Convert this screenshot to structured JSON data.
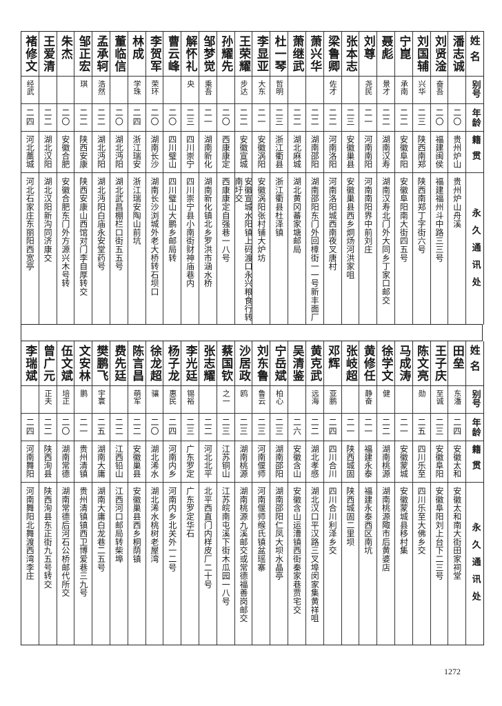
{
  "headers": {
    "name": "姓名",
    "alias": "别号",
    "age": "年龄",
    "origin": "籍贯",
    "address": "永久通讯处"
  },
  "top_rows": [
    {
      "name": "潘志诚",
      "alias": "",
      "age": "二〇",
      "origin": "贵州炉山",
      "address": "贵州炉山舟溪"
    },
    {
      "name": "刘贤淦",
      "alias": "奋吾",
      "age": "二〇",
      "origin": "福建闽侯",
      "address": "福建福州斗中路三三号"
    },
    {
      "name": "刘国辅",
      "alias": "兴华",
      "age": "二三",
      "origin": "陕西南郑",
      "address": "陕西南郑丁字街六号"
    },
    {
      "name": "宁崑",
      "alias": "承南",
      "age": "二二",
      "origin": "安徽阜阳",
      "address": "安徽阜阳南大街四五号"
    },
    {
      "name": "聂彪",
      "alias": "景才",
      "age": "二二",
      "origin": "湖南汉寿",
      "address": "湖南汉寿北门外大同乡丁家口邮交"
    },
    {
      "name": "刘尊",
      "alias": "尧民",
      "age": "二一",
      "origin": "河南南阳",
      "address": "河南南阳界中前刘庄"
    },
    {
      "name": "张本志",
      "alias": "",
      "age": "二三",
      "origin": "安徽巢县",
      "address": "安徽巢县西乡炯炀河洪家咀"
    },
    {
      "name": "梁鲁卿",
      "alias": "佐才",
      "age": "二二",
      "origin": "河南洛阳",
      "address": "河南洛阳城西南夜叉唐村"
    },
    {
      "name": "萧兴华",
      "alias": "",
      "age": "二二",
      "origin": "湖南邵阳",
      "address": "湖南邵阳东门外回樟街一一号新丰面厂"
    },
    {
      "name": "萧继武",
      "alias": "",
      "age": "二二",
      "origin": "湖北麻城",
      "address": "湖北黄冈蕃家塘邮局"
    },
    {
      "name": "杜一琴",
      "alias": "哲明",
      "age": "二三",
      "origin": "浙江衢县",
      "address": "浙江衢县杜泽镇"
    },
    {
      "name": "李显亚",
      "alias": "大东",
      "age": "二一",
      "origin": "安徽涡阳",
      "address": "安徽涡阳张村铺大炉坊"
    },
    {
      "name": "王荣耀",
      "alias": "步达",
      "age": "二二",
      "origin": "安徽宣城",
      "address": "安徽宣城水阳镇上码渡口永兴粮食行转南圩交"
    },
    {
      "name": "孙耀先",
      "alias": "",
      "age": "二〇",
      "origin": "西康康定",
      "address": "西康康定自强巷一八号"
    },
    {
      "name": "邹梦觉",
      "alias": "乘吾",
      "age": "二一",
      "origin": "湖南新化",
      "address": "湖南新化镇北乡罗洪市涵水桥"
    },
    {
      "name": "解怀礼",
      "alias": "央",
      "age": "二三",
      "origin": "四川崇宁",
      "address": "四川崇宁县小南街财神庙巷内"
    },
    {
      "name": "曹云峰",
      "alias": "",
      "age": "二〇",
      "origin": "四川璧山",
      "address": "四川璧山大鹏乡邮局转"
    },
    {
      "name": "李贺军",
      "alias": "荣环",
      "age": "二〇",
      "origin": "湖南长沙",
      "address": "湖南长沙浏城外老大桥转石坝口"
    },
    {
      "name": "林成",
      "alias": "学珠",
      "age": "二四",
      "origin": "浙江瑞安",
      "address": "浙江瑞安陶山前坑"
    },
    {
      "name": "董临信",
      "alias": "",
      "age": "二〇",
      "origin": "湖北沔阳",
      "address": "湖北武昌棚栏口街五五号"
    },
    {
      "name": "孟承轲",
      "alias": "浩然",
      "age": "二二",
      "origin": "湖北沔阳",
      "address": "湖北沔阳白庙永安堂药号"
    },
    {
      "name": "邹正宏",
      "alias": "琪",
      "age": "二二",
      "origin": "陕西安康",
      "address": "陕西安康山西馆对门李自厚转交"
    },
    {
      "name": "朱杰",
      "alias": "",
      "age": "二〇",
      "origin": "安徽合肥",
      "address": "安徽合肥东门外方源兴木号转"
    },
    {
      "name": "王爱清",
      "alias": "",
      "age": "二二",
      "origin": "湖北汉阳",
      "address": "湖北汉阳新沟同济康交"
    },
    {
      "name": "褚修文",
      "alias": "经武",
      "age": "二四",
      "origin": "河北藁城",
      "address": "河北石家庄东丽阳西宽亭"
    }
  ],
  "bottom_rows": [
    {
      "name": "田垒",
      "alias": "东潘",
      "age": "二四",
      "origin": "安徽太和",
      "address": "安徽太和南大街田家祠堂"
    },
    {
      "name": "王子庆",
      "alias": "至诚",
      "age": "二三",
      "origin": "安徽阜阳",
      "address": "安徽阜阳刘上台下二三号"
    },
    {
      "name": "陈文亮",
      "alias": "勋",
      "age": "二五",
      "origin": "四川乐至",
      "address": "四川乐至大佛乡交"
    },
    {
      "name": "马成涛",
      "alias": "",
      "age": "二一",
      "origin": "安徽蒙城",
      "address": "安徽蒙城县移村集"
    },
    {
      "name": "徐学文",
      "alias": "健",
      "age": "二二",
      "origin": "湖南桃源",
      "address": "湖南桃源陬市后黄婆店"
    },
    {
      "name": "黄修任",
      "alias": "静奋",
      "age": "二一",
      "origin": "福建永泰",
      "address": "福建永泰西区南坑"
    },
    {
      "name": "张岐超",
      "alias": "",
      "age": "二一",
      "origin": "陕西城固",
      "address": "陕西城固二里坝"
    },
    {
      "name": "邓辉",
      "alias": "亚鹏",
      "age": "二四",
      "origin": "四川合川",
      "address": "四川合川利泽乡交"
    },
    {
      "name": "黄克武",
      "alias": "远海",
      "age": "二二",
      "origin": "湖北孝感",
      "address": "湖北汉口平汉路三叉埠闵家集黄祥咀"
    },
    {
      "name": "吴清鉴",
      "alias": "",
      "age": "二六",
      "origin": "安徽含山",
      "address": "安徽含山运漕镇西街秦家巷贾宅交"
    },
    {
      "name": "宁岳斌",
      "alias": "柏心",
      "age": "二三",
      "origin": "湖南邵阳",
      "address": "湖南邵阳仁凤大坝水晶亭"
    },
    {
      "name": "刘东鲁",
      "alias": "鲁云",
      "age": "二三",
      "origin": "河南偃师",
      "address": "河南偃师缑氏镇盆瑶寨"
    },
    {
      "name": "沙居政",
      "alias": "鸥",
      "age": "二三",
      "origin": "湖南桃源",
      "address": "湖南桃源九溪邮交或常德福善岗邮交"
    },
    {
      "name": "蔡国钦",
      "alias": "之一",
      "age": "二三",
      "origin": "江苏铜山",
      "address": "江苏皖南屯溪下街木瓜园一八号"
    },
    {
      "name": "张志耀",
      "alias": "",
      "age": "二二",
      "origin": "河北北平",
      "address": "北平西直门内样皮厂二十号"
    },
    {
      "name": "李光廷",
      "alias": "锡裕",
      "age": "二三",
      "origin": "广东罗定",
      "address": "广东罗定华石"
    },
    {
      "name": "杨子龙",
      "alias": "惠民",
      "age": "二四",
      "origin": "河南内乡",
      "address": "河南内乡北关外一二号"
    },
    {
      "name": "徐龙超",
      "alias": "骧",
      "age": "二〇",
      "origin": "湖北浠水",
      "address": "湖北浠水桃树老屋湾"
    },
    {
      "name": "陈言昌",
      "alias": "萌军",
      "age": "二二",
      "origin": "安徽巢县",
      "address": "安徽巢县西乡桐荫镇"
    },
    {
      "name": "费先廷",
      "alias": "",
      "age": "二二",
      "origin": "江西铅山",
      "address": "江西河口邮局转柴埠"
    },
    {
      "name": "樊鹏飞",
      "alias": "宇寰",
      "age": "二五",
      "origin": "湖南大庸",
      "address": "湖南大庸白龙巷二五号"
    },
    {
      "name": "文安林",
      "alias": "鹏",
      "age": "二一",
      "origin": "贵州清镇",
      "address": "贵州清镇镇西卫博爱巷三九号"
    },
    {
      "name": "伍文斌",
      "alias": "培正",
      "age": "二〇",
      "origin": "湖南常德",
      "address": "湖南常德后河石公桥邮代所交"
    },
    {
      "name": "曾广元",
      "alias": "正夫",
      "age": "二二",
      "origin": "陕西洵县",
      "address": "陕西洵县东正街九五号转交"
    },
    {
      "name": "李瑞斌",
      "alias": "",
      "age": "二四",
      "origin": "河南舞阳",
      "address": "河南舞阳北舞渡西湾李庄"
    }
  ],
  "page_number": "1272"
}
